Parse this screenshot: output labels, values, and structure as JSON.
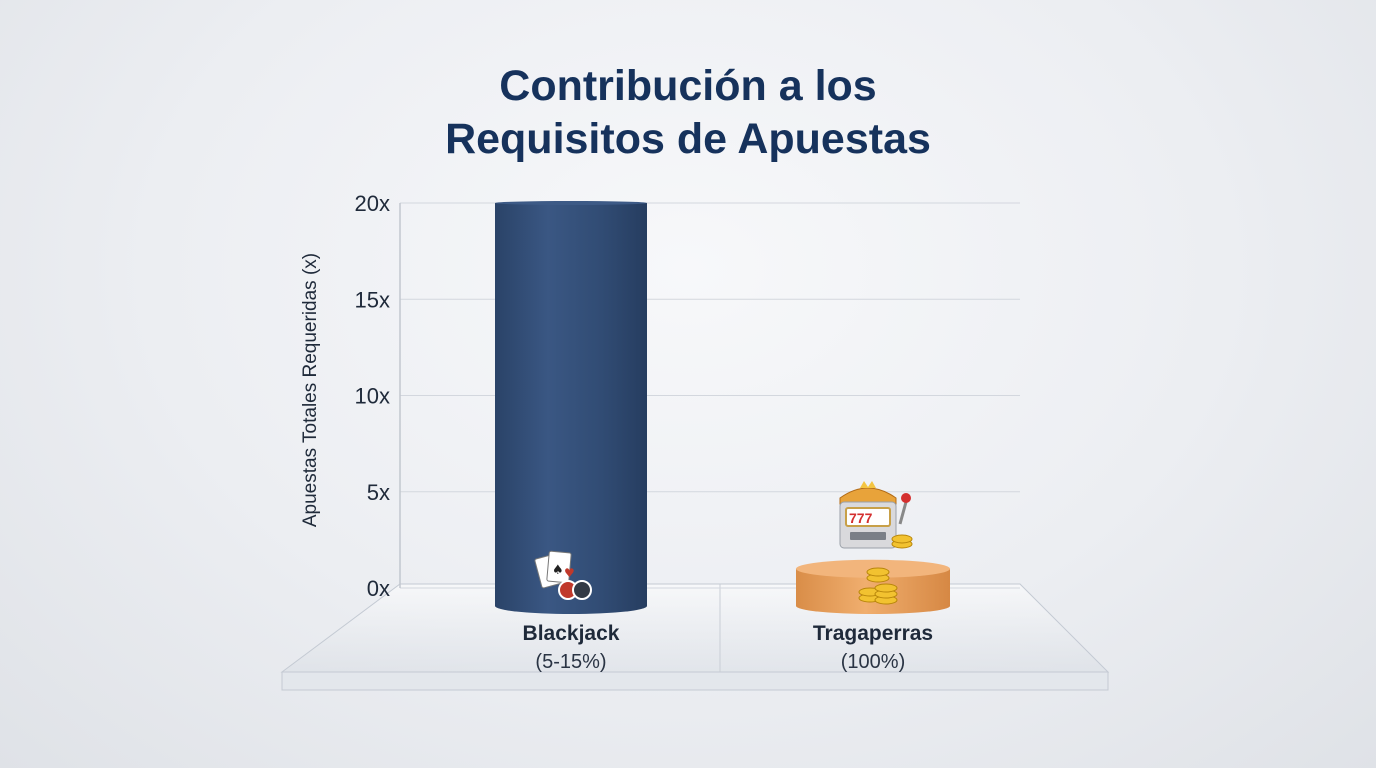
{
  "chart_data": {
    "type": "bar",
    "title_lines": [
      "Contribución a los",
      "Requisitos de Apuestas"
    ],
    "ylabel": "Apuestas Totales Requeridas (x)",
    "xlabel": "",
    "ylim": [
      0,
      20
    ],
    "yticks": [
      0,
      5,
      10,
      15,
      20
    ],
    "ytick_labels": [
      "0x",
      "5x",
      "10x",
      "15x",
      "20x"
    ],
    "categories": [
      "Blackjack",
      "Tragaperras"
    ],
    "category_sublabels": [
      "(5-15%)",
      "(100%)"
    ],
    "values": [
      20,
      1
    ],
    "grid": true,
    "legend": "none"
  },
  "colors": {
    "title": "#16325c",
    "blackjack_bar": "#34507a",
    "slots_bar": "#e8a060",
    "text": "#1f2a3a"
  },
  "icons": [
    "playing-cards-icon",
    "slot-machine-icon",
    "coins-icon"
  ]
}
